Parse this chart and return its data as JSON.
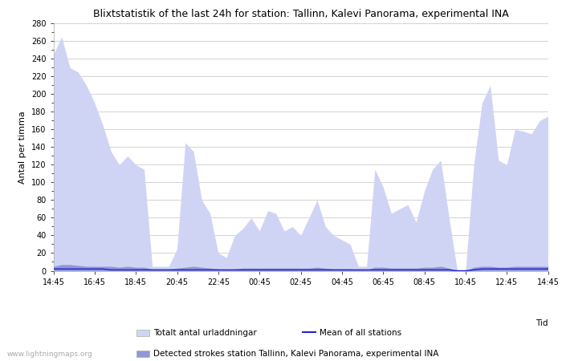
{
  "title": "Blixtstatistik of the last 24h for station: Tallinn, Kalevi Panorama, experimental INA",
  "ylabel": "Antal per timma",
  "xlabel_right": "Tid",
  "watermark": "www.lightningmaps.org",
  "x_ticks": [
    "14:45",
    "16:45",
    "18:45",
    "20:45",
    "22:45",
    "00:45",
    "02:45",
    "04:45",
    "06:45",
    "08:45",
    "10:45",
    "12:45",
    "14:45"
  ],
  "ylim": [
    0,
    280
  ],
  "yticks_major": [
    0,
    20,
    40,
    60,
    80,
    100,
    120,
    140,
    160,
    180,
    200,
    220,
    240,
    260,
    280
  ],
  "bg_color": "#ffffff",
  "grid_color": "#cccccc",
  "fill_light_color": "#d0d4f4",
  "fill_dark_color": "#9098d8",
  "mean_line_color": "#2222cc",
  "legend_light_label": "Totalt antal urladdningar",
  "legend_dark_label": "Detected strokes station Tallinn, Kalevi Panorama, experimental INA",
  "legend_mean_label": "Mean of all stations",
  "total_strokes": [
    245,
    265,
    230,
    225,
    210,
    190,
    165,
    135,
    120,
    130,
    120,
    115,
    5,
    5,
    5,
    25,
    145,
    135,
    80,
    65,
    20,
    15,
    40,
    48,
    60,
    45,
    68,
    65,
    45,
    50,
    40,
    60,
    80,
    50,
    40,
    35,
    30,
    5,
    5,
    115,
    95,
    65,
    70,
    75,
    55,
    90,
    115,
    125,
    60,
    0,
    0,
    120,
    190,
    210,
    125,
    120,
    160,
    158,
    155,
    170,
    175
  ],
  "station_strokes": [
    5,
    7,
    7,
    6,
    5,
    5,
    5,
    5,
    4,
    5,
    4,
    4,
    2,
    2,
    2,
    3,
    4,
    5,
    4,
    3,
    2,
    1,
    2,
    3,
    3,
    3,
    3,
    3,
    3,
    3,
    3,
    3,
    4,
    3,
    2,
    2,
    2,
    1,
    1,
    4,
    4,
    3,
    3,
    3,
    3,
    4,
    4,
    5,
    3,
    0,
    0,
    4,
    5,
    5,
    4,
    4,
    5,
    5,
    5,
    5,
    5
  ],
  "mean_strokes": [
    2,
    2,
    2,
    2,
    2,
    2,
    2,
    1,
    1,
    1,
    1,
    1,
    1,
    1,
    1,
    1,
    1,
    1,
    1,
    1,
    1,
    1,
    1,
    1,
    1,
    1,
    1,
    1,
    1,
    1,
    1,
    1,
    1,
    1,
    1,
    1,
    1,
    1,
    1,
    1,
    1,
    1,
    1,
    1,
    1,
    1,
    1,
    1,
    1,
    0,
    0,
    1,
    2,
    2,
    2,
    2,
    2,
    2,
    2,
    2,
    2
  ]
}
